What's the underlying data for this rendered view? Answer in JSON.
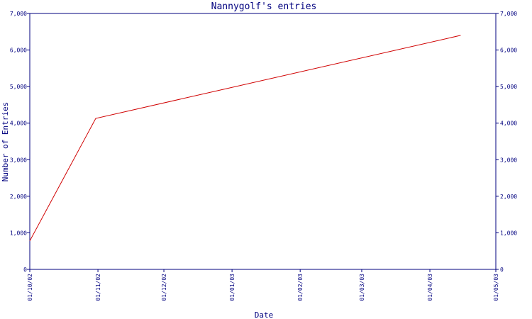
{
  "colors": {
    "axis": "#00007f",
    "line": "#d00000",
    "background": "#ffffff"
  },
  "chart_data": {
    "type": "line",
    "title": "Nannygolf's entries",
    "xlabel": "Date",
    "ylabel": "Number of Entries",
    "x_type": "date",
    "xlim": [
      "2002-10-01",
      "2003-05-01"
    ],
    "ylim": [
      0,
      7000
    ],
    "x_ticks": [
      {
        "date": "2002-10-01",
        "label": "01/10/02"
      },
      {
        "date": "2002-11-01",
        "label": "01/11/02"
      },
      {
        "date": "2002-12-01",
        "label": "01/12/02"
      },
      {
        "date": "2003-01-01",
        "label": "01/01/03"
      },
      {
        "date": "2003-02-01",
        "label": "01/02/03"
      },
      {
        "date": "2003-03-01",
        "label": "01/03/03"
      },
      {
        "date": "2003-04-01",
        "label": "01/04/03"
      },
      {
        "date": "2003-05-01",
        "label": "01/05/03"
      }
    ],
    "y_ticks": [
      {
        "value": 0,
        "label": "0"
      },
      {
        "value": 1000,
        "label": "1,000"
      },
      {
        "value": 2000,
        "label": "2,000"
      },
      {
        "value": 3000,
        "label": "3,000"
      },
      {
        "value": 4000,
        "label": "4,000"
      },
      {
        "value": 5000,
        "label": "5,000"
      },
      {
        "value": 6000,
        "label": "6,000"
      },
      {
        "value": 7000,
        "label": "7,000"
      }
    ],
    "grid": false,
    "legend": "none",
    "series": [
      {
        "points": [
          {
            "x": "2002-10-01",
            "y": 780
          },
          {
            "x": "2002-10-31",
            "y": 4130
          },
          {
            "x": "2003-04-15",
            "y": 6400
          }
        ]
      }
    ]
  }
}
